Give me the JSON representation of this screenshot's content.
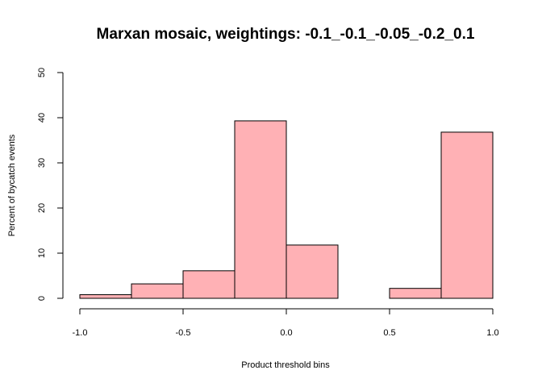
{
  "chart_data": {
    "type": "bar",
    "title": "Marxan mosaic, weightings: -0.1_-0.1_-0.05_-0.2_0.1",
    "xlabel": "Product threshold bins",
    "ylabel": "Percent of bycatch events",
    "xlim": [
      -1.0,
      1.0
    ],
    "ylim": [
      0,
      50
    ],
    "x_ticks": [
      -1.0,
      -0.5,
      0.0,
      0.5,
      1.0
    ],
    "x_tick_labels": [
      "-1.0",
      "-0.5",
      "0.0",
      "0.5",
      "1.0"
    ],
    "y_ticks": [
      0,
      10,
      20,
      30,
      40,
      50
    ],
    "y_tick_labels": [
      "0",
      "10",
      "20",
      "30",
      "40",
      "50"
    ],
    "bin_edges": [
      -1.0,
      -0.75,
      -0.5,
      -0.25,
      0.0,
      0.25,
      0.5,
      0.75,
      1.0
    ],
    "values": [
      0.8,
      3.2,
      6.1,
      39.3,
      11.8,
      0.0,
      2.2,
      36.8
    ],
    "bar_fill": "#ffb1b5",
    "bar_stroke": "#000000",
    "grid": false,
    "legend": "none"
  }
}
